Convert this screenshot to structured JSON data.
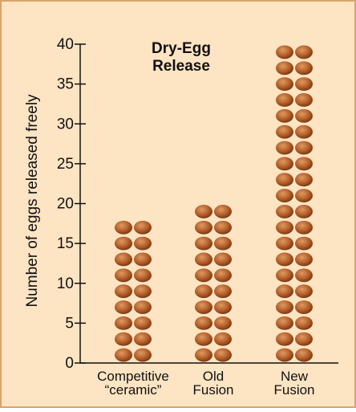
{
  "chart_data": {
    "type": "pictograph",
    "title": "Dry-Egg Release",
    "y_label": "Number of eggs released freely",
    "categories": [
      "Competitive “ceramic”",
      "Old Fusion",
      "New Fusion"
    ],
    "values": [
      18,
      20,
      40
    ],
    "color": "#b5602a",
    "ylim": [
      0,
      40
    ],
    "yticks": [
      0,
      5,
      10,
      15,
      20,
      25,
      30,
      35,
      40
    ]
  }
}
